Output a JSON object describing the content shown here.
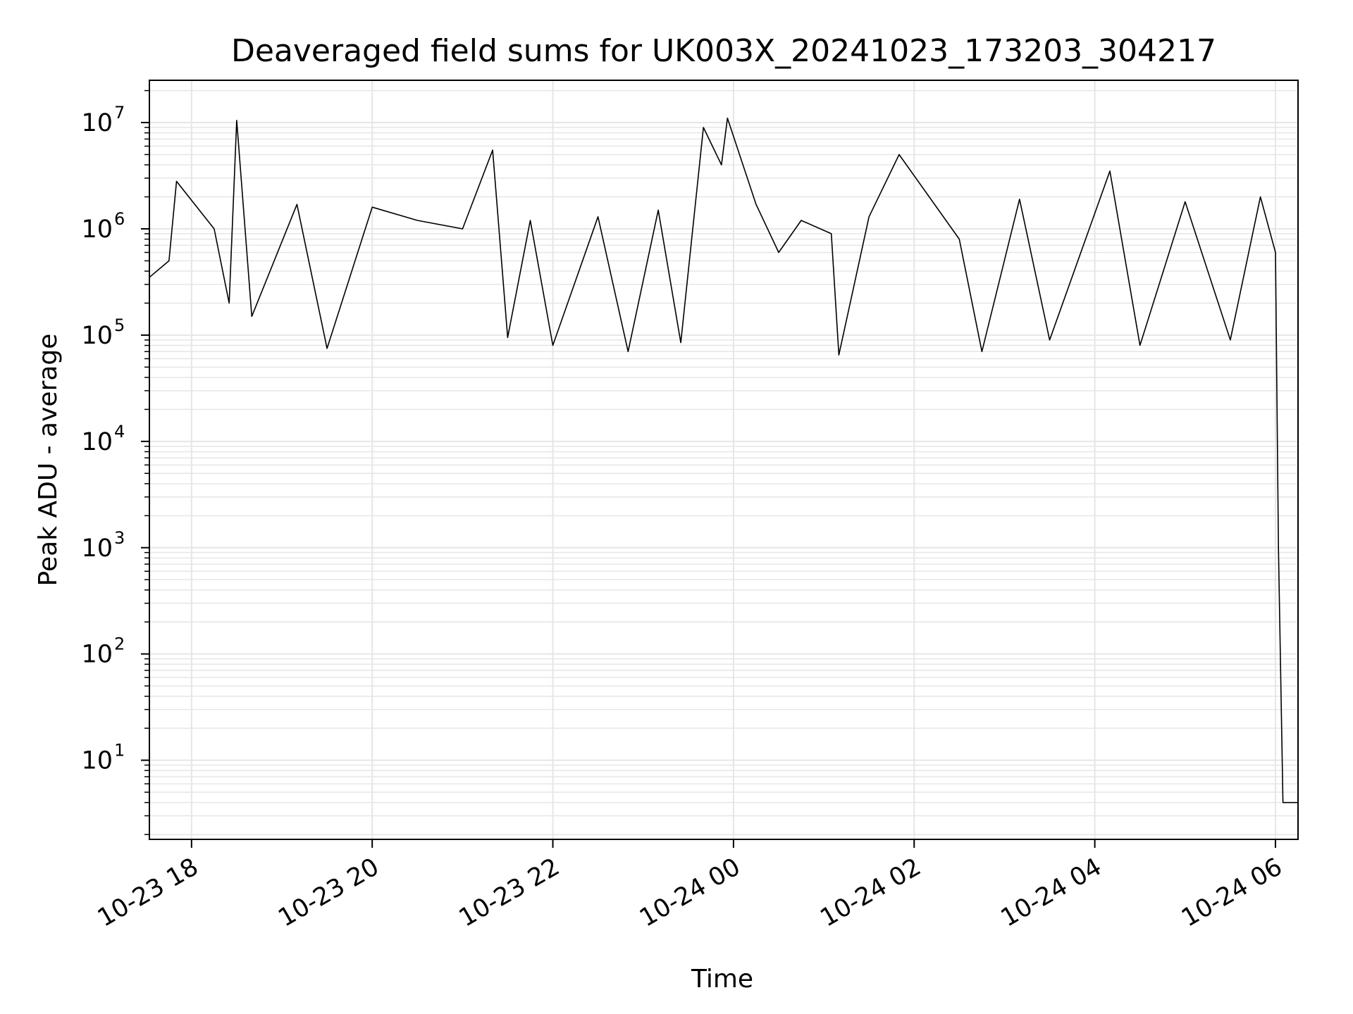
{
  "chart_data": {
    "type": "line",
    "title": "Deaveraged field sums for UK003X_20241023_173203_304217",
    "xlabel": "Time",
    "ylabel": "Peak ADU - average",
    "yscale": "log",
    "ylim": [
      1.8,
      25000000
    ],
    "xlim": [
      "2024-10-23 17:32",
      "2024-10-24 06:15"
    ],
    "grid": true,
    "line_color": "#000000",
    "grid_color": "#e6e6e6",
    "x_ticks": [
      {
        "value": "2024-10-23 18:00",
        "label": "10-23 18"
      },
      {
        "value": "2024-10-23 20:00",
        "label": "10-23 20"
      },
      {
        "value": "2024-10-23 22:00",
        "label": "10-23 22"
      },
      {
        "value": "2024-10-24 00:00",
        "label": "10-24 00"
      },
      {
        "value": "2024-10-24 02:00",
        "label": "10-24 02"
      },
      {
        "value": "2024-10-24 04:00",
        "label": "10-24 04"
      },
      {
        "value": "2024-10-24 06:00",
        "label": "10-24 06"
      }
    ],
    "y_ticks": [
      {
        "value": 10,
        "base": "10",
        "exp": "1"
      },
      {
        "value": 100,
        "base": "10",
        "exp": "2"
      },
      {
        "value": 1000,
        "base": "10",
        "exp": "3"
      },
      {
        "value": 10000,
        "base": "10",
        "exp": "4"
      },
      {
        "value": 100000,
        "base": "10",
        "exp": "5"
      },
      {
        "value": 1000000,
        "base": "10",
        "exp": "6"
      },
      {
        "value": 10000000,
        "base": "10",
        "exp": "7"
      }
    ],
    "series": [
      {
        "x": [
          "2024-10-23 17:32",
          "2024-10-23 17:45",
          "2024-10-23 17:50",
          "2024-10-23 18:15",
          "2024-10-23 18:25",
          "2024-10-23 18:30",
          "2024-10-23 18:40",
          "2024-10-23 19:10",
          "2024-10-23 19:30",
          "2024-10-23 20:00",
          "2024-10-23 20:30",
          "2024-10-23 21:00",
          "2024-10-23 21:20",
          "2024-10-23 21:30",
          "2024-10-23 21:45",
          "2024-10-23 22:00",
          "2024-10-23 22:30",
          "2024-10-23 22:50",
          "2024-10-23 23:10",
          "2024-10-23 23:25",
          "2024-10-23 23:40",
          "2024-10-23 23:52",
          "2024-10-23 23:56",
          "2024-10-24 00:15",
          "2024-10-24 00:30",
          "2024-10-24 00:45",
          "2024-10-24 01:05",
          "2024-10-24 01:10",
          "2024-10-24 01:30",
          "2024-10-24 01:50",
          "2024-10-24 02:30",
          "2024-10-24 02:45",
          "2024-10-24 03:10",
          "2024-10-24 03:30",
          "2024-10-24 04:10",
          "2024-10-24 04:30",
          "2024-10-24 05:00",
          "2024-10-24 05:30",
          "2024-10-24 05:50",
          "2024-10-24 06:00",
          "2024-10-24 06:02",
          "2024-10-24 06:03",
          "2024-10-24 06:05",
          "2024-10-24 06:15"
        ],
        "y": [
          350000,
          500000,
          2800000,
          1000000,
          200000,
          10500000,
          150000,
          1700000,
          75000,
          1600000,
          1200000,
          1000000,
          5500000,
          95000,
          1200000,
          80000,
          1300000,
          70000,
          1500000,
          85000,
          9000000,
          4000000,
          11000000,
          1700000,
          600000,
          1200000,
          900000,
          65000,
          1300000,
          5000000,
          800000,
          70000,
          1900000,
          90000,
          3500000,
          80000,
          1800000,
          90000,
          2000000,
          600000,
          1000,
          150,
          4,
          4
        ]
      }
    ]
  }
}
